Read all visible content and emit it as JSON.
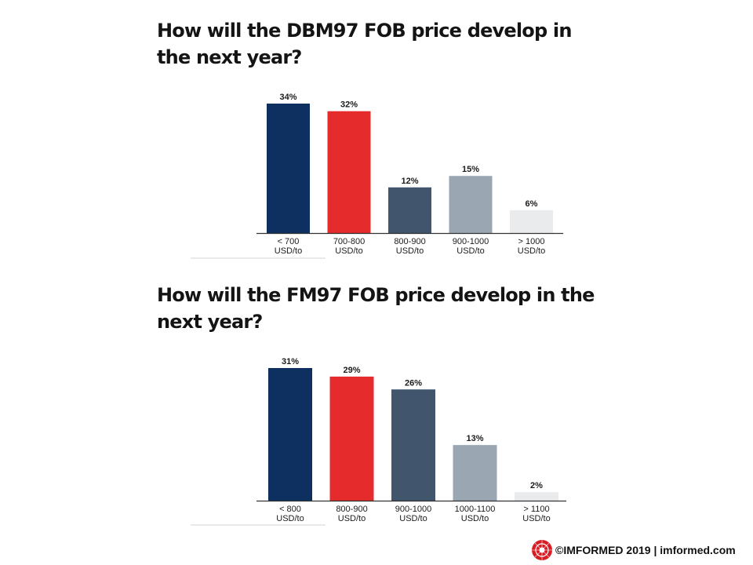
{
  "colors": {
    "navy": "#0d3060",
    "red": "#e52b2b",
    "slate": "#41566c",
    "gray": "#9aa7b2",
    "light": "#e9ebed",
    "logo_red": "#d81e25"
  },
  "chart_data": [
    {
      "type": "bar",
      "title": "How will the DBM97 FOB price develop in the next year?",
      "categories": [
        [
          "< 700",
          "USD/to"
        ],
        [
          "700-800",
          "USD/to"
        ],
        [
          "800-900",
          "USD/to"
        ],
        [
          "900-1000",
          "USD/to"
        ],
        [
          "> 1000",
          "USD/to"
        ]
      ],
      "values": [
        34,
        32,
        12,
        15,
        6
      ],
      "value_labels": [
        "34%",
        "32%",
        "12%",
        "15%",
        "6%"
      ],
      "bar_colors": [
        "#0d3060",
        "#e52b2b",
        "#41566c",
        "#9aa7b2",
        "#e9ebed"
      ],
      "ylim": [
        0,
        34
      ],
      "grid": false,
      "legend": "none"
    },
    {
      "type": "bar",
      "title": "How will the FM97 FOB price develop in the next year?",
      "categories": [
        [
          "< 800",
          "USD/to"
        ],
        [
          "800-900",
          "USD/to"
        ],
        [
          "900-1000",
          "USD/to"
        ],
        [
          "1000-1100",
          "USD/to"
        ],
        [
          "> 1100",
          "USD/to"
        ]
      ],
      "values": [
        31,
        29,
        26,
        13,
        2
      ],
      "value_labels": [
        "31%",
        "29%",
        "26%",
        "13%",
        "2%"
      ],
      "bar_colors": [
        "#0d3060",
        "#e52b2b",
        "#41566c",
        "#9aa7b2",
        "#e9ebed"
      ],
      "ylim": [
        0,
        31
      ],
      "grid": false,
      "legend": "none"
    }
  ],
  "footer": {
    "icon": "imformed-logo-icon",
    "text": "©IMFORMED  2019  | imformed.com"
  }
}
